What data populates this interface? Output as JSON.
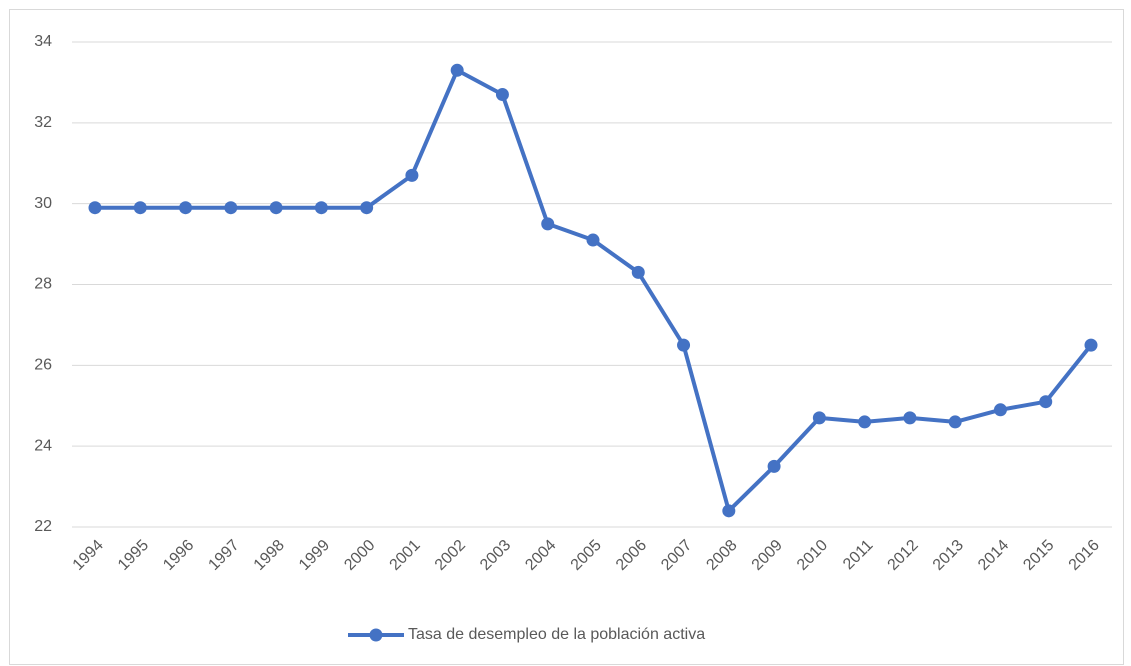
{
  "chart_data": {
    "type": "line",
    "categories": [
      "1994",
      "1995",
      "1996",
      "1997",
      "1998",
      "1999",
      "2000",
      "2001",
      "2002",
      "2003",
      "2004",
      "2005",
      "2006",
      "2007",
      "2008",
      "2009",
      "2010",
      "2011",
      "2012",
      "2013",
      "2014",
      "2015",
      "2016"
    ],
    "series": [
      {
        "name": "Tasa de desempleo de la población activa",
        "color": "#4472c4",
        "values": [
          29.9,
          29.9,
          29.9,
          29.9,
          29.9,
          29.9,
          29.9,
          30.7,
          33.3,
          32.7,
          29.5,
          29.1,
          28.3,
          26.5,
          22.4,
          23.5,
          24.7,
          24.6,
          24.7,
          24.6,
          24.9,
          25.1,
          26.5
        ]
      }
    ],
    "ylim": [
      22,
      34
    ],
    "yticks": [
      22,
      24,
      26,
      28,
      30,
      32,
      34
    ],
    "grid": true,
    "legend": "bottom"
  }
}
